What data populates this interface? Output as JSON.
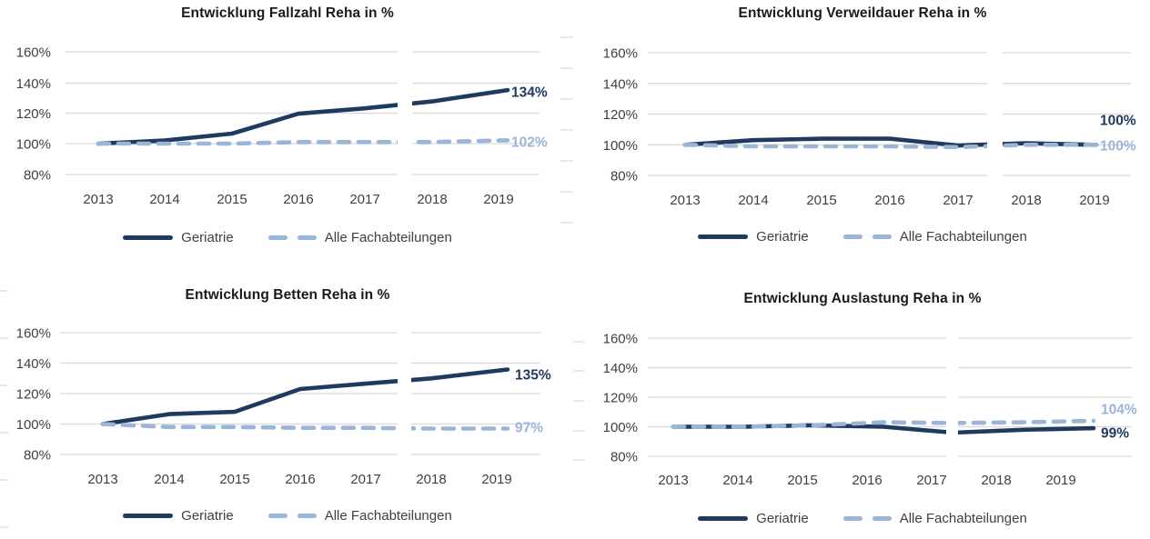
{
  "page": {
    "background": "#ffffff"
  },
  "colors": {
    "geriatrie": "#1F3A5F",
    "alle_fachabteilungen": "#9BB5D9",
    "gridline": "#D9D9D9",
    "axis_text": "#3F3F3F",
    "title_text": "#1A1A1A",
    "legend_text": "#404040"
  },
  "legend": {
    "items": [
      {
        "name": "Geriatrie",
        "style": "solid"
      },
      {
        "name": "Alle Fachabteilungen",
        "style": "dashed"
      }
    ]
  },
  "axis": {
    "y_tick_labels": [
      "160%",
      "140%",
      "120%",
      "100%",
      "80%"
    ],
    "x_tick_labels": [
      "2013",
      "2014",
      "2015",
      "2016",
      "2017",
      "2018",
      "2019"
    ],
    "y_min": 80,
    "y_max": 160,
    "grid": "horizontal",
    "legend_position": "bottom"
  },
  "chart_data": [
    {
      "type": "line",
      "title": "Entwicklung Fallzahl Reha in %",
      "position": "top-left",
      "x": [
        2013,
        2014,
        2015,
        2016,
        2017,
        2018,
        2019
      ],
      "ylim": [
        80,
        160
      ],
      "series": [
        {
          "name": "Geriatrie",
          "color_key": "geriatrie",
          "dashed": false,
          "values": [
            100,
            102,
            106.5,
            119.5,
            123,
            127.5,
            134
          ],
          "end_label": "134%"
        },
        {
          "name": "Alle Fachabteilungen",
          "color_key": "alle_fachabteilungen",
          "dashed": true,
          "values": [
            100,
            100,
            100,
            101,
            101,
            101,
            102
          ],
          "end_label": "102%"
        }
      ]
    },
    {
      "type": "line",
      "title": "Entwicklung Verweildauer Reha in %",
      "position": "top-right",
      "x": [
        2013,
        2014,
        2015,
        2016,
        2017,
        2018,
        2019
      ],
      "ylim": [
        80,
        160
      ],
      "series": [
        {
          "name": "Geriatrie",
          "color_key": "geriatrie",
          "dashed": false,
          "values": [
            100,
            103,
            104,
            104,
            99.5,
            101,
            100
          ],
          "end_label": "100%"
        },
        {
          "name": "Alle Fachabteilungen",
          "color_key": "alle_fachabteilungen",
          "dashed": true,
          "values": [
            100,
            99,
            99,
            99,
            98.5,
            100,
            100
          ],
          "end_label": "100%"
        }
      ]
    },
    {
      "type": "line",
      "title": "Entwicklung Betten Reha in %",
      "position": "bottom-left",
      "x": [
        2013,
        2014,
        2015,
        2016,
        2017,
        2018,
        2019
      ],
      "ylim": [
        80,
        160
      ],
      "series": [
        {
          "name": "Geriatrie",
          "color_key": "geriatrie",
          "dashed": false,
          "values": [
            100,
            106.5,
            108,
            123,
            126.5,
            130,
            135
          ],
          "end_label": "135%"
        },
        {
          "name": "Alle Fachabteilungen",
          "color_key": "alle_fachabteilungen",
          "dashed": true,
          "values": [
            100,
            98,
            98,
            97.5,
            97.5,
            97,
            97
          ],
          "end_label": "97%"
        }
      ]
    },
    {
      "type": "line",
      "title": "Entwicklung Auslastung Reha in %",
      "position": "bottom-right",
      "x": [
        2013,
        2014,
        2015,
        2016,
        2017,
        2018,
        2019
      ],
      "ylim": [
        80,
        160
      ],
      "series": [
        {
          "name": "Geriatrie",
          "color_key": "geriatrie",
          "dashed": false,
          "values": [
            100,
            100,
            101,
            100,
            96,
            98,
            99
          ],
          "end_label": "99%"
        },
        {
          "name": "Alle Fachabteilungen",
          "color_key": "alle_fachabteilungen",
          "dashed": true,
          "values": [
            100,
            100,
            101,
            103,
            102.5,
            103,
            104
          ],
          "end_label": "104%"
        }
      ]
    }
  ]
}
